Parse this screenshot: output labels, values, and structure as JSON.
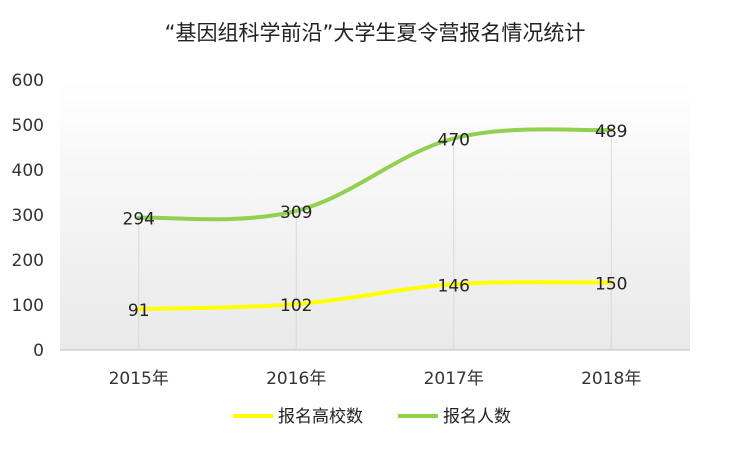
{
  "chart_data": {
    "type": "line",
    "title": "“基因组科学前沿”大学生夏令营报名情况统计",
    "categories": [
      "2015年",
      "2016年",
      "2017年",
      "2018年"
    ],
    "series": [
      {
        "name": "报名高校数",
        "values": [
          91,
          102,
          146,
          150
        ],
        "color": "#ffff00"
      },
      {
        "name": "报名人数",
        "values": [
          294,
          309,
          470,
          489
        ],
        "color": "#92d050"
      }
    ],
    "ylim": [
      0,
      600
    ],
    "yticks": [
      0,
      100,
      200,
      300,
      400,
      500,
      600
    ],
    "xlabel": "",
    "ylabel": "",
    "grid": "vertical drop lines",
    "legend": "bottom"
  }
}
